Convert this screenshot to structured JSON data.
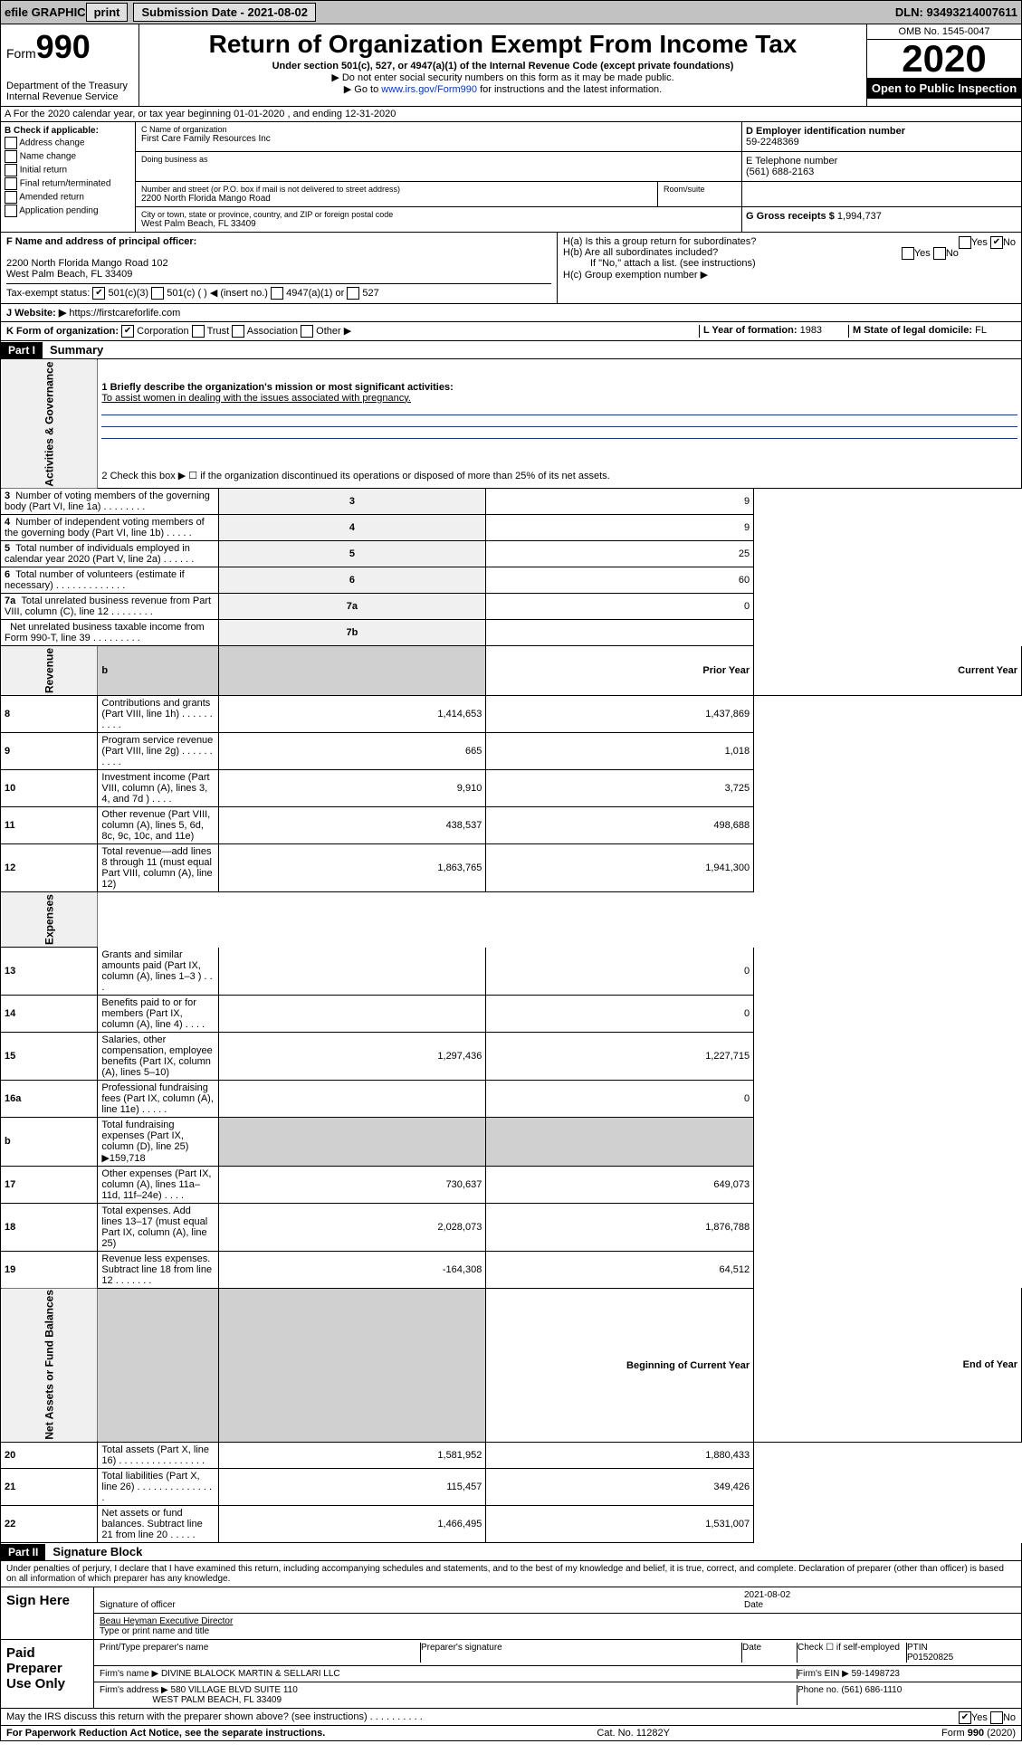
{
  "topbar": {
    "efile": "efile GRAPHIC",
    "print": "print",
    "sub_label": "Submission Date - 2021-08-02",
    "dln": "DLN: 93493214007611"
  },
  "header": {
    "form_word": "Form",
    "form_num": "990",
    "dept1": "Department of the Treasury",
    "dept2": "Internal Revenue Service",
    "title": "Return of Organization Exempt From Income Tax",
    "sub1": "Under section 501(c), 527, or 4947(a)(1) of the Internal Revenue Code (except private foundations)",
    "sub2": "▶ Do not enter social security numbers on this form as it may be made public.",
    "sub3_pre": "▶ Go to ",
    "sub3_link": "www.irs.gov/Form990",
    "sub3_post": " for instructions and the latest information.",
    "omb": "OMB No. 1545-0047",
    "year": "2020",
    "open": "Open to Public Inspection"
  },
  "rowA": {
    "text": "A   For the 2020 calendar year, or tax year beginning 01-01-2020    , and ending 12-31-2020"
  },
  "boxB": {
    "label": "B Check if applicable:",
    "opts": [
      "Address change",
      "Name change",
      "Initial return",
      "Final return/terminated",
      "Amended return",
      "Application pending"
    ]
  },
  "boxC": {
    "c_label": "C Name of organization",
    "c_val": "First Care Family Resources Inc",
    "dba_label": "Doing business as",
    "dba_val": "",
    "addr_label": "Number and street (or P.O. box if mail is not delivered to street address)",
    "addr_val": "2200 North Florida Mango Road",
    "room_label": "Room/suite",
    "room_val": "",
    "city_label": "City or town, state or province, country, and ZIP or foreign postal code",
    "city_val": "West Palm Beach, FL  33409"
  },
  "boxD": {
    "label": "D Employer identification number",
    "val": "59-2248369"
  },
  "boxE": {
    "label": "E Telephone number",
    "val": "(561) 688-2163"
  },
  "boxG": {
    "label": "G Gross receipts $",
    "val": "1,994,737"
  },
  "boxF": {
    "label": "F  Name and address of principal officer:",
    "l1": "2200 North Florida Mango Road 102",
    "l2": "West Palm Beach, FL  33409"
  },
  "boxH": {
    "ha": "H(a)  Is this a group return for subordinates?",
    "ha_yes": "Yes",
    "ha_no": "No",
    "hb": "H(b)  Are all subordinates included?",
    "hb_yes": "Yes",
    "hb_no": "No",
    "hb_note": "If \"No,\" attach a list. (see instructions)",
    "hc": "H(c)  Group exemption number ▶"
  },
  "taxI": {
    "label": "Tax-exempt status:",
    "c3": "501(c)(3)",
    "c": "501(c) (  ) ◀ (insert no.)",
    "a1": "4947(a)(1) or",
    "s527": "527"
  },
  "lineJ": {
    "label": "J   Website: ▶",
    "val": "https://firstcareforlife.com"
  },
  "lineK": {
    "label": "K Form of organization:",
    "corp": "Corporation",
    "trust": "Trust",
    "assoc": "Association",
    "other": "Other ▶"
  },
  "lineL": {
    "label": "L Year of formation:",
    "val": "1983"
  },
  "lineM": {
    "label": "M State of legal domicile:",
    "val": "FL"
  },
  "part1": {
    "hdr": "Part I",
    "title": "Summary"
  },
  "summary": {
    "g1_label": "Activities & Governance",
    "rev_label": "Revenue",
    "exp_label": "Expenses",
    "net_label": "Net Assets or Fund Balances",
    "l1": "1  Briefly describe the organization's mission or most significant activities:",
    "l1_val": "To assist women in dealing with the issues associated with pregnancy.",
    "l2": "2   Check this box ▶ ☐  if the organization discontinued its operations or disposed of more than 25% of its net assets.",
    "rows_top": [
      {
        "n": "3",
        "t": "Number of voting members of the governing body (Part VI, line 1a)  .  .  .  .  .  .  .  .",
        "bn": "3",
        "v": "9"
      },
      {
        "n": "4",
        "t": "Number of independent voting members of the governing body (Part VI, line 1b)  .  .  .  .  .",
        "bn": "4",
        "v": "9"
      },
      {
        "n": "5",
        "t": "Total number of individuals employed in calendar year 2020 (Part V, line 2a)  .  .  .  .  .  .",
        "bn": "5",
        "v": "25"
      },
      {
        "n": "6",
        "t": "Total number of volunteers (estimate if necessary)  .  .  .  .  .  .  .  .  .  .  .  .  .",
        "bn": "6",
        "v": "60"
      },
      {
        "n": "7a",
        "t": "Total unrelated business revenue from Part VIII, column (C), line 12  .  .  .  .  .  .  .  .",
        "bn": "7a",
        "v": "0"
      },
      {
        "n": "",
        "t": "Net unrelated business taxable income from Form 990-T, line 39  .  .  .  .  .  .  .  .  .",
        "bn": "7b",
        "v": ""
      }
    ],
    "col_prior": "Prior Year",
    "col_curr": "Current Year",
    "col_begin": "Beginning of Current Year",
    "col_end": "End of Year",
    "revenue": [
      {
        "n": "8",
        "t": "Contributions and grants (Part VIII, line 1h)  .  .  .  .  .  .  .  .  .  .",
        "p": "1,414,653",
        "c": "1,437,869"
      },
      {
        "n": "9",
        "t": "Program service revenue (Part VIII, line 2g)  .  .  .  .  .  .  .  .  .  .",
        "p": "665",
        "c": "1,018"
      },
      {
        "n": "10",
        "t": "Investment income (Part VIII, column (A), lines 3, 4, and 7d )  .  .  .  .",
        "p": "9,910",
        "c": "3,725"
      },
      {
        "n": "11",
        "t": "Other revenue (Part VIII, column (A), lines 5, 6d, 8c, 9c, 10c, and 11e)",
        "p": "438,537",
        "c": "498,688"
      },
      {
        "n": "12",
        "t": "Total revenue—add lines 8 through 11 (must equal Part VIII, column (A), line 12)",
        "p": "1,863,765",
        "c": "1,941,300"
      }
    ],
    "expenses": [
      {
        "n": "13",
        "t": "Grants and similar amounts paid (Part IX, column (A), lines 1–3 )  .  .  .",
        "p": "",
        "c": "0"
      },
      {
        "n": "14",
        "t": "Benefits paid to or for members (Part IX, column (A), line 4)  .  .  .  .",
        "p": "",
        "c": "0"
      },
      {
        "n": "15",
        "t": "Salaries, other compensation, employee benefits (Part IX, column (A), lines 5–10)",
        "p": "1,297,436",
        "c": "1,227,715"
      },
      {
        "n": "16a",
        "t": "Professional fundraising fees (Part IX, column (A), line 11e)  .  .  .  .  .",
        "p": "",
        "c": "0"
      },
      {
        "n": "b",
        "t": "Total fundraising expenses (Part IX, column (D), line 25) ▶159,718",
        "p": "",
        "c": "",
        "shade": true
      },
      {
        "n": "17",
        "t": "Other expenses (Part IX, column (A), lines 11a–11d, 11f–24e)  .  .  .  .",
        "p": "730,637",
        "c": "649,073"
      },
      {
        "n": "18",
        "t": "Total expenses. Add lines 13–17 (must equal Part IX, column (A), line 25)",
        "p": "2,028,073",
        "c": "1,876,788"
      },
      {
        "n": "19",
        "t": "Revenue less expenses. Subtract line 18 from line 12  .  .  .  .  .  .  .",
        "p": "-164,308",
        "c": "64,512"
      }
    ],
    "net": [
      {
        "n": "20",
        "t": "Total assets (Part X, line 16)  .  .  .  .  .  .  .  .  .  .  .  .  .  .  .  .",
        "p": "1,581,952",
        "c": "1,880,433"
      },
      {
        "n": "21",
        "t": "Total liabilities (Part X, line 26)  .  .  .  .  .  .  .  .  .  .  .  .  .  .  .",
        "p": "115,457",
        "c": "349,426"
      },
      {
        "n": "22",
        "t": "Net assets or fund balances. Subtract line 21 from line 20  .  .  .  .  .",
        "p": "1,466,495",
        "c": "1,531,007"
      }
    ]
  },
  "part2": {
    "hdr": "Part II",
    "title": "Signature Block",
    "decl": "Under penalties of perjury, I declare that I have examined this return, including accompanying schedules and statements, and to the best of my knowledge and belief, it is true, correct, and complete. Declaration of preparer (other than officer) is based on all information of which preparer has any knowledge."
  },
  "sign": {
    "here": "Sign Here",
    "sig_officer": "Signature of officer",
    "date_label": "Date",
    "date_val": "2021-08-02",
    "name": "Beau Heyman  Executive Director",
    "name_label": "Type or print name and title"
  },
  "paid": {
    "label": "Paid Preparer Use Only",
    "col1": "Print/Type preparer's name",
    "col2": "Preparer's signature",
    "col3": "Date",
    "col4a": "Check ☐ if self-employed",
    "col4b": "PTIN",
    "ptin": "P01520825",
    "firm_label": "Firm's name  ▶",
    "firm": "DIVINE BLALOCK MARTIN & SELLARI LLC",
    "ein_label": "Firm's EIN ▶",
    "ein": "59-1498723",
    "addr_label": "Firm's address ▶",
    "addr1": "580 VILLAGE BLVD SUITE 110",
    "addr2": "WEST PALM BEACH, FL  33409",
    "phone_label": "Phone no.",
    "phone": "(561) 686-1110"
  },
  "discuss": {
    "q": "May the IRS discuss this return with the preparer shown above? (see instructions)  .  .  .  .  .  .  .  .  .  .",
    "yes": "Yes",
    "no": "No"
  },
  "footer": {
    "l": "For Paperwork Reduction Act Notice, see the separate instructions.",
    "m": "Cat. No. 11282Y",
    "r": "Form 990 (2020)"
  }
}
